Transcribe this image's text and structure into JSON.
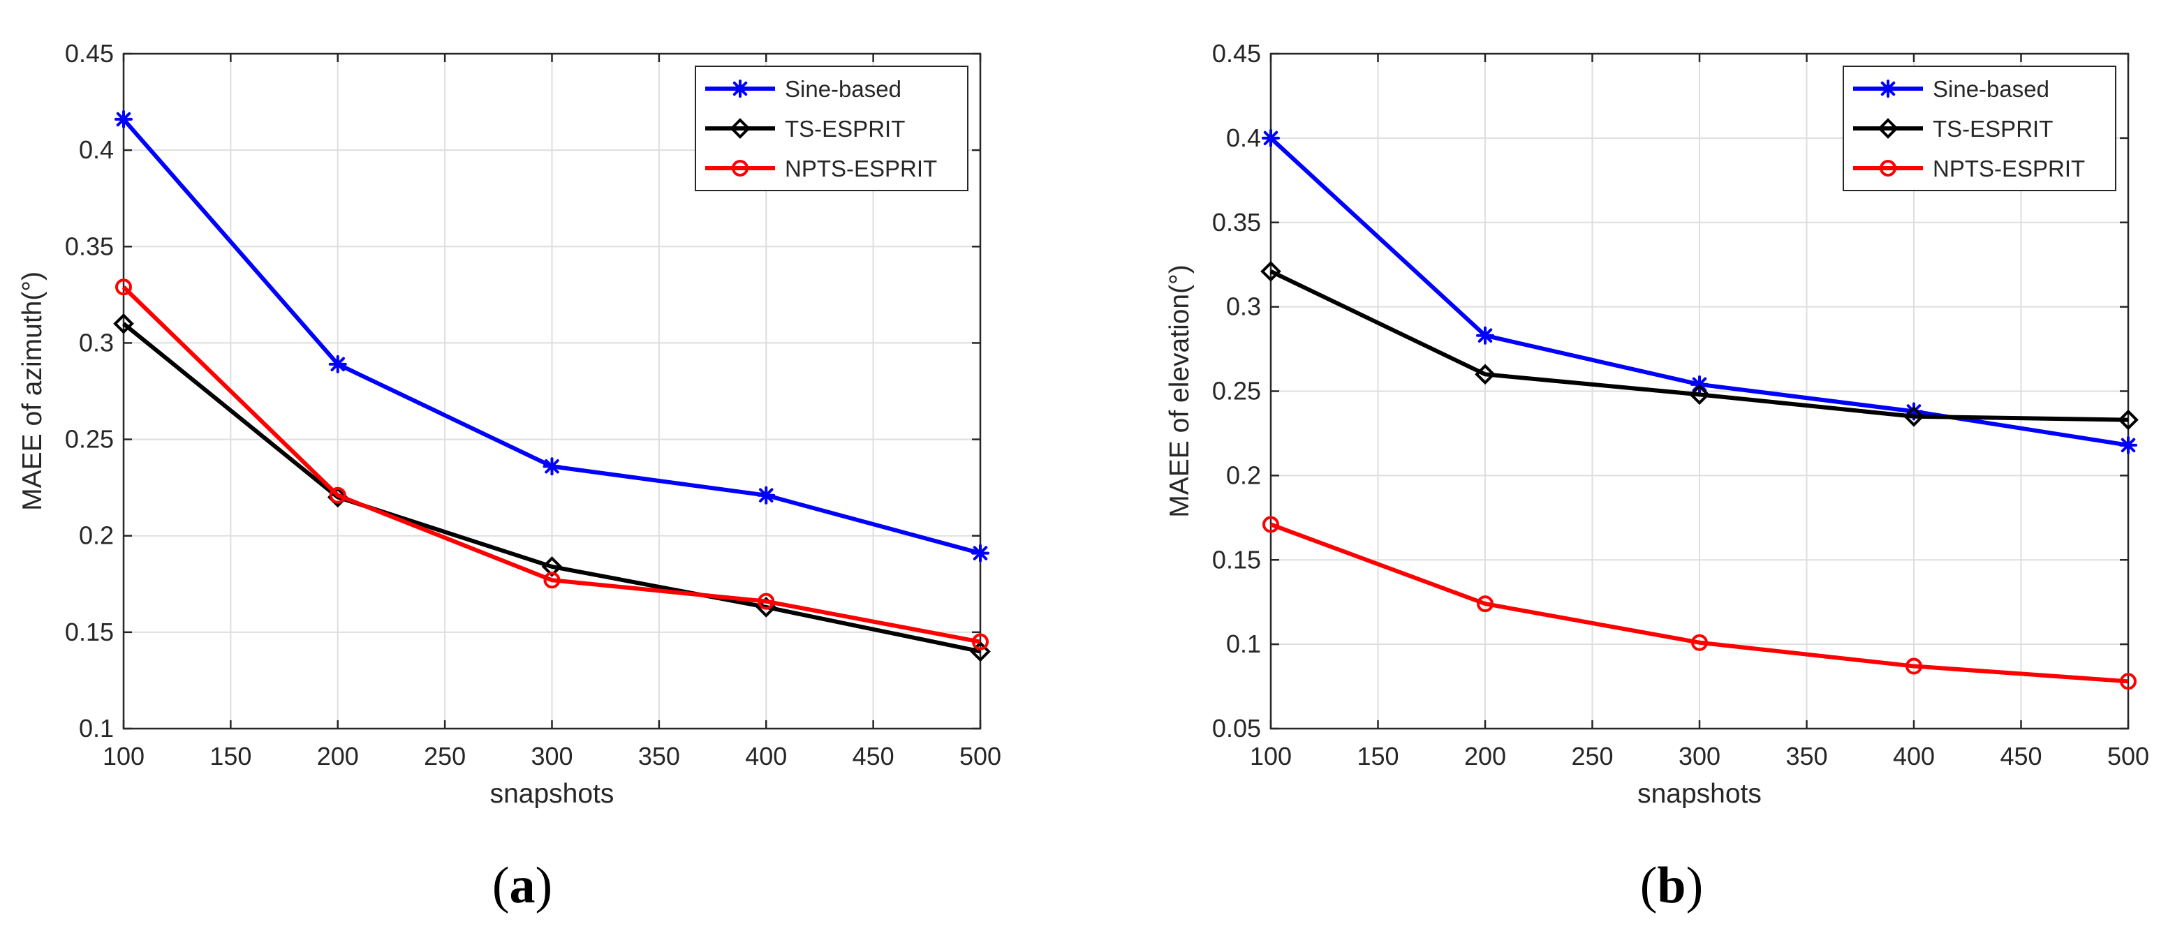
{
  "chart_data": [
    {
      "type": "line",
      "panel": "a",
      "xlabel": "snapshots",
      "ylabel": "MAEE of azimuth(°)",
      "xlim": [
        100,
        500
      ],
      "ylim": [
        0.1,
        0.45
      ],
      "xticks": [
        100,
        150,
        200,
        250,
        300,
        350,
        400,
        450,
        500
      ],
      "yticks": [
        0.1,
        0.15,
        0.2,
        0.25,
        0.3,
        0.35,
        0.4,
        0.45
      ],
      "xtick_labels": [
        "100",
        "150",
        "200",
        "250",
        "300",
        "350",
        "400",
        "450",
        "500"
      ],
      "ytick_labels": [
        "0.1",
        "0.15",
        "0.2",
        "0.25",
        "0.3",
        "0.35",
        "0.4",
        "0.45"
      ],
      "grid": true,
      "legend_position": "top-right",
      "x": [
        100,
        200,
        300,
        400,
        500
      ],
      "series": [
        {
          "name": "Sine-based",
          "color": "#0000ff",
          "marker": "star",
          "values": [
            0.416,
            0.289,
            0.236,
            0.221,
            0.191
          ]
        },
        {
          "name": "TS-ESPRIT",
          "color": "#000000",
          "marker": "diamond",
          "values": [
            0.31,
            0.22,
            0.184,
            0.163,
            0.14
          ]
        },
        {
          "name": "NPTS-ESPRIT",
          "color": "#ff0000",
          "marker": "circle",
          "values": [
            0.329,
            0.221,
            0.177,
            0.166,
            0.145
          ]
        }
      ]
    },
    {
      "type": "line",
      "panel": "b",
      "xlabel": "snapshots",
      "ylabel": "MAEE of elevation(°)",
      "xlim": [
        100,
        500
      ],
      "ylim": [
        0.05,
        0.45
      ],
      "xticks": [
        100,
        150,
        200,
        250,
        300,
        350,
        400,
        450,
        500
      ],
      "yticks": [
        0.05,
        0.1,
        0.15,
        0.2,
        0.25,
        0.3,
        0.35,
        0.4,
        0.45
      ],
      "xtick_labels": [
        "100",
        "150",
        "200",
        "250",
        "300",
        "350",
        "400",
        "450",
        "500"
      ],
      "ytick_labels": [
        "0.05",
        "0.1",
        "0.15",
        "0.2",
        "0.25",
        "0.3",
        "0.35",
        "0.4",
        "0.45"
      ],
      "grid": true,
      "legend_position": "top-right",
      "x": [
        100,
        200,
        300,
        400,
        500
      ],
      "series": [
        {
          "name": "Sine-based",
          "color": "#0000ff",
          "marker": "star",
          "values": [
            0.4,
            0.283,
            0.254,
            0.238,
            0.218
          ]
        },
        {
          "name": "TS-ESPRIT",
          "color": "#000000",
          "marker": "diamond",
          "values": [
            0.321,
            0.26,
            0.248,
            0.235,
            0.233
          ]
        },
        {
          "name": "NPTS-ESPRIT",
          "color": "#ff0000",
          "marker": "circle",
          "values": [
            0.171,
            0.124,
            0.101,
            0.087,
            0.078
          ]
        }
      ]
    }
  ],
  "panel_labels": [
    {
      "open": "(",
      "letter": "a",
      "close": ")"
    },
    {
      "open": "(",
      "letter": "b",
      "close": ")"
    }
  ]
}
